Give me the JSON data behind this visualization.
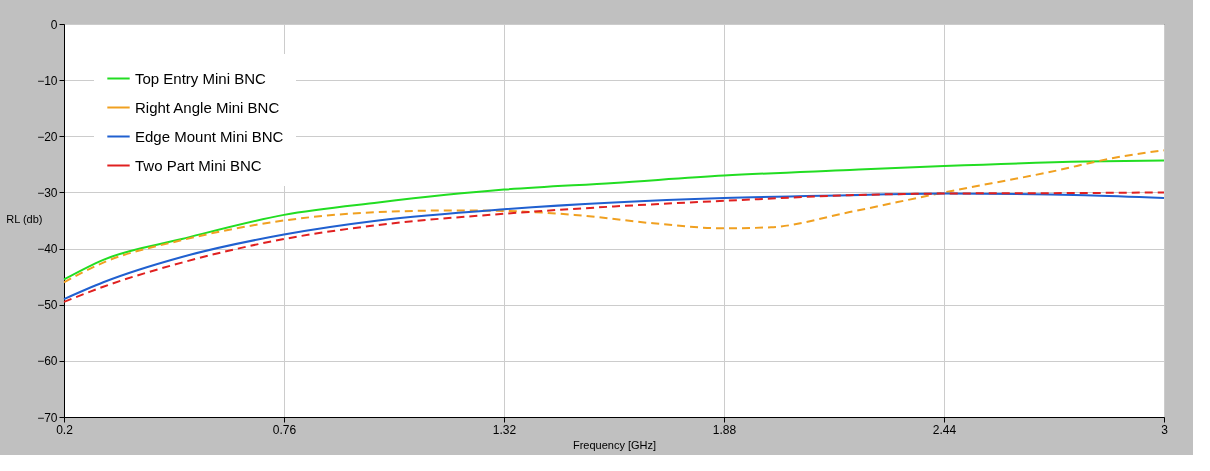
{
  "chart_data": {
    "type": "line",
    "xlabel": "Frequency [GHz]",
    "ylabel": "RL (db)",
    "xlim": [
      0.2,
      3
    ],
    "xticks": [
      0.2,
      0.76,
      1.32,
      1.88,
      2.44,
      3
    ],
    "ylim": [
      -70,
      0
    ],
    "yticks": [
      -70,
      -60,
      -50,
      -40,
      -30,
      -20,
      -10,
      0
    ],
    "grid": true,
    "legend": "top left",
    "series": [
      {
        "name": "Top Entry Mini BNC",
        "color": "#22dd22",
        "line_style": "solid",
        "x": [
          0.2,
          0.3,
          0.5,
          0.76,
          1.0,
          1.32,
          1.6,
          1.88,
          2.2,
          2.44,
          2.8,
          3.0
        ],
        "values": [
          -45.5,
          -42,
          -38.3,
          -34,
          -31.8,
          -29.5,
          -28.3,
          -27,
          -26,
          -25.3,
          -24.5,
          -24.3
        ]
      },
      {
        "name": "Right Angle Mini BNC",
        "color": "#f0a020",
        "line_style": "dashed",
        "x": [
          0.2,
          0.3,
          0.5,
          0.76,
          1.0,
          1.2,
          1.32,
          1.5,
          1.7,
          1.88,
          2.0,
          2.2,
          2.44,
          2.7,
          2.9,
          3.0
        ],
        "values": [
          -46,
          -42.5,
          -38.5,
          -35,
          -33.5,
          -33.2,
          -33.3,
          -34,
          -35.5,
          -36.4,
          -36.2,
          -33.5,
          -30,
          -26.5,
          -23.5,
          -22.5
        ]
      },
      {
        "name": "Edge Mount Mini BNC",
        "color": "#2060d0",
        "line_style": "solid",
        "x": [
          0.2,
          0.3,
          0.5,
          0.76,
          1.0,
          1.32,
          1.6,
          1.88,
          2.2,
          2.44,
          2.8,
          3.0
        ],
        "values": [
          -49,
          -46,
          -41.5,
          -37.5,
          -35,
          -33,
          -31.8,
          -31,
          -30.5,
          -30.2,
          -30.5,
          -31
        ]
      },
      {
        "name": "Two Part Mini BNC",
        "color": "#e02020",
        "line_style": "dashed",
        "x": [
          0.2,
          0.3,
          0.5,
          0.76,
          1.0,
          1.32,
          1.6,
          1.88,
          2.2,
          2.44,
          2.8,
          3.0
        ],
        "values": [
          -49.5,
          -46.8,
          -42.5,
          -38.3,
          -35.8,
          -33.8,
          -32.5,
          -31.5,
          -30.5,
          -30.2,
          -30.1,
          -30
        ]
      }
    ]
  }
}
